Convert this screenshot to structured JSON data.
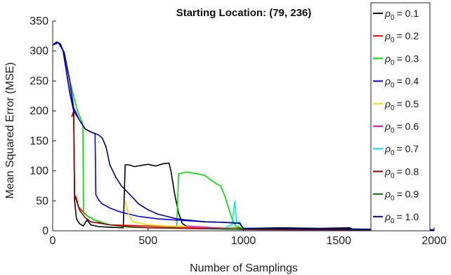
{
  "chart_data": {
    "type": "line",
    "title": "Starting Location: (79, 236)",
    "xlabel": "Number of Samplings",
    "ylabel": "Mean Squared Error (MSE)",
    "xlim": [
      0,
      2000
    ],
    "ylim": [
      0,
      350
    ],
    "xticks": [
      "0",
      "500",
      "1000",
      "1500",
      "2000"
    ],
    "yticks": [
      "0",
      "50",
      "100",
      "150",
      "200",
      "250",
      "300",
      "350"
    ],
    "grid": false,
    "legend_position": "top-right",
    "series": [
      {
        "name": "ρ0 = 0.1",
        "label_symbol": "ρ",
        "label_sub": "0",
        "label_value": "= 0.1",
        "color": "#000000",
        "points": [
          [
            0,
            310
          ],
          [
            20,
            315
          ],
          [
            40,
            312
          ],
          [
            55,
            300
          ],
          [
            70,
            270
          ],
          [
            90,
            230
          ],
          [
            110,
            200
          ],
          [
            115,
            50
          ],
          [
            125,
            20
          ],
          [
            140,
            12
          ],
          [
            160,
            8
          ],
          [
            180,
            18
          ],
          [
            200,
            10
          ],
          [
            240,
            7
          ],
          [
            300,
            6
          ],
          [
            370,
            5
          ],
          [
            380,
            110
          ],
          [
            400,
            110
          ],
          [
            430,
            107
          ],
          [
            460,
            109
          ],
          [
            500,
            111
          ],
          [
            540,
            108
          ],
          [
            580,
            112
          ],
          [
            610,
            113
          ],
          [
            620,
            100
          ],
          [
            640,
            60
          ],
          [
            660,
            30
          ],
          [
            680,
            12
          ],
          [
            700,
            8
          ],
          [
            760,
            6
          ],
          [
            900,
            5
          ],
          [
            1000,
            4
          ],
          [
            1200,
            5
          ],
          [
            1400,
            4
          ],
          [
            1560,
            5
          ],
          [
            1580,
            1
          ],
          [
            2000,
            1
          ]
        ]
      },
      {
        "name": "ρ0 = 0.2",
        "label_symbol": "ρ",
        "label_sub": "0",
        "label_value": "= 0.2",
        "color": "#ff0000",
        "points": [
          [
            0,
            310
          ],
          [
            30,
            314
          ],
          [
            60,
            298
          ],
          [
            90,
            250
          ],
          [
            110,
            200
          ],
          [
            115,
            60
          ],
          [
            125,
            55
          ],
          [
            135,
            40
          ],
          [
            150,
            35
          ],
          [
            180,
            25
          ],
          [
            220,
            18
          ],
          [
            260,
            12
          ],
          [
            300,
            10
          ],
          [
            400,
            9
          ],
          [
            500,
            8
          ],
          [
            600,
            7
          ],
          [
            700,
            6
          ],
          [
            800,
            5
          ],
          [
            900,
            4
          ],
          [
            1000,
            3
          ],
          [
            1200,
            2
          ],
          [
            2000,
            1
          ]
        ]
      },
      {
        "name": "ρ0 = 0.3",
        "label_symbol": "ρ",
        "label_sub": "0",
        "label_value": "= 0.3",
        "color": "#00e000",
        "points": [
          [
            0,
            310
          ],
          [
            30,
            314
          ],
          [
            60,
            298
          ],
          [
            90,
            250
          ],
          [
            130,
            200
          ],
          [
            158,
            178
          ],
          [
            162,
            30
          ],
          [
            180,
            25
          ],
          [
            220,
            18
          ],
          [
            300,
            10
          ],
          [
            400,
            6
          ],
          [
            500,
            5
          ],
          [
            600,
            5
          ],
          [
            650,
            5
          ],
          [
            660,
            95
          ],
          [
            700,
            98
          ],
          [
            760,
            95
          ],
          [
            800,
            92
          ],
          [
            850,
            80
          ],
          [
            880,
            75
          ],
          [
            900,
            60
          ],
          [
            920,
            40
          ],
          [
            940,
            20
          ],
          [
            960,
            8
          ],
          [
            1000,
            4
          ],
          [
            1200,
            3
          ],
          [
            2000,
            1
          ]
        ]
      },
      {
        "name": "ρ0 = 0.4",
        "label_symbol": "ρ",
        "label_sub": "0",
        "label_value": "= 0.4",
        "color": "#0000ff",
        "points": [
          [
            0,
            310
          ],
          [
            30,
            314
          ],
          [
            60,
            298
          ],
          [
            90,
            250
          ],
          [
            110,
            205
          ],
          [
            140,
            185
          ],
          [
            170,
            170
          ],
          [
            200,
            165
          ],
          [
            222,
            162
          ],
          [
            226,
            60
          ],
          [
            235,
            55
          ],
          [
            245,
            50
          ],
          [
            260,
            45
          ],
          [
            300,
            38
          ],
          [
            350,
            32
          ],
          [
            400,
            28
          ],
          [
            450,
            24
          ],
          [
            500,
            22
          ],
          [
            550,
            20
          ],
          [
            600,
            19
          ],
          [
            700,
            17
          ],
          [
            800,
            15
          ],
          [
            900,
            14
          ],
          [
            980,
            12
          ],
          [
            1000,
            4
          ],
          [
            1500,
            3
          ],
          [
            2000,
            2
          ]
        ]
      },
      {
        "name": "ρ0 = 0.5",
        "label_symbol": "ρ",
        "label_sub": "0",
        "label_value": "= 0.5",
        "color": "#e6e600",
        "points": [
          [
            380,
            50
          ],
          [
            400,
            25
          ],
          [
            420,
            15
          ],
          [
            500,
            10
          ],
          [
            600,
            8
          ],
          [
            700,
            7
          ],
          [
            800,
            6
          ],
          [
            900,
            5
          ],
          [
            1000,
            3
          ],
          [
            2000,
            1
          ]
        ]
      },
      {
        "name": "ρ0 = 0.6",
        "label_symbol": "ρ",
        "label_sub": "0",
        "label_value": "= 0.6",
        "color": "#ff00ff",
        "points": [
          [
            700,
            8
          ],
          [
            750,
            7
          ],
          [
            800,
            6
          ],
          [
            850,
            5
          ],
          [
            900,
            4
          ],
          [
            950,
            3
          ],
          [
            1000,
            2
          ],
          [
            2000,
            1
          ]
        ]
      },
      {
        "name": "ρ0 = 0.7",
        "label_symbol": "ρ",
        "label_sub": "0",
        "label_value": "= 0.7",
        "color": "#00e5ee",
        "points": [
          [
            900,
            5
          ],
          [
            940,
            10
          ],
          [
            955,
            50
          ],
          [
            965,
            12
          ],
          [
            980,
            15
          ],
          [
            1000,
            3
          ],
          [
            1200,
            2
          ],
          [
            2000,
            1
          ]
        ]
      },
      {
        "name": "ρ0 = 0.8",
        "label_symbol": "ρ",
        "label_sub": "0",
        "label_value": "= 0.8",
        "color": "#8b0000",
        "points": [
          [
            100,
            190
          ],
          [
            110,
            200
          ],
          [
            114,
            60
          ],
          [
            125,
            50
          ],
          [
            140,
            35
          ],
          [
            170,
            22
          ],
          [
            200,
            15
          ],
          [
            300,
            10
          ],
          [
            400,
            7
          ],
          [
            500,
            5
          ],
          [
            700,
            4
          ],
          [
            900,
            3
          ],
          [
            1100,
            2
          ],
          [
            2000,
            1
          ]
        ]
      },
      {
        "name": "ρ0 = 0.9",
        "label_symbol": "ρ",
        "label_sub": "0",
        "label_value": "= 0.9",
        "color": "#006400",
        "points": [
          [
            800,
            4
          ],
          [
            900,
            3
          ],
          [
            1000,
            3
          ],
          [
            1300,
            3
          ],
          [
            1500,
            3
          ],
          [
            1600,
            2
          ],
          [
            2000,
            1
          ]
        ]
      },
      {
        "name": "ρ0 = 1.0",
        "label_symbol": "ρ",
        "label_sub": "0",
        "label_value": "= 1.0",
        "color": "#00008b",
        "points": [
          [
            0,
            310
          ],
          [
            20,
            315
          ],
          [
            40,
            312
          ],
          [
            55,
            300
          ],
          [
            70,
            270
          ],
          [
            90,
            230
          ],
          [
            110,
            200
          ],
          [
            140,
            185
          ],
          [
            170,
            170
          ],
          [
            200,
            165
          ],
          [
            225,
            162
          ],
          [
            240,
            160
          ],
          [
            260,
            155
          ],
          [
            280,
            140
          ],
          [
            300,
            110
          ],
          [
            330,
            90
          ],
          [
            360,
            75
          ],
          [
            400,
            62
          ],
          [
            450,
            45
          ],
          [
            500,
            35
          ],
          [
            550,
            28
          ],
          [
            600,
            24
          ],
          [
            650,
            20
          ],
          [
            700,
            18
          ],
          [
            800,
            15
          ],
          [
            900,
            14
          ],
          [
            980,
            13
          ],
          [
            1000,
            4
          ],
          [
            1500,
            3
          ],
          [
            2000,
            1
          ]
        ]
      }
    ]
  }
}
